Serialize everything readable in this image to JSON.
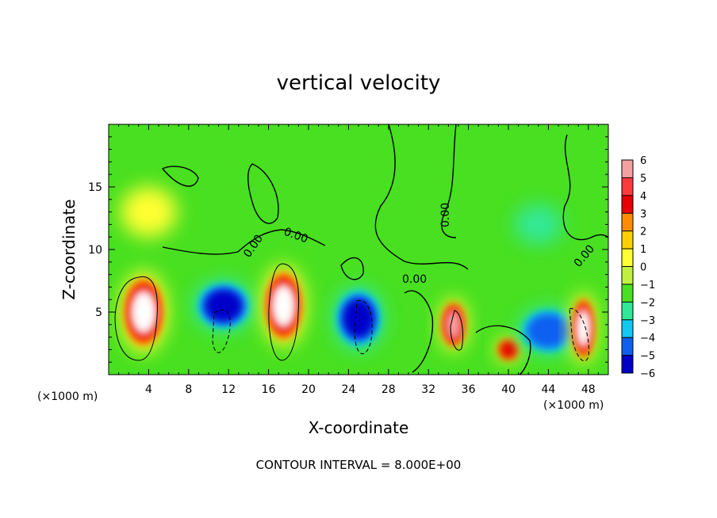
{
  "chart_data": {
    "type": "heatmap",
    "title": "vertical velocity",
    "xlabel": "X-coordinate",
    "ylabel": "Z-coordinate",
    "x_units_left": "(×1000 m)",
    "x_units_right": "(×1000 m)",
    "footer": "CONTOUR INTERVAL = 8.000E+00",
    "xlim": [
      0,
      50
    ],
    "ylim": [
      0,
      20
    ],
    "xticks": [
      "4",
      "8",
      "12",
      "16",
      "20",
      "24",
      "28",
      "32",
      "36",
      "40",
      "44",
      "48"
    ],
    "yticks": [
      "5",
      "10",
      "15"
    ],
    "colorbar": {
      "labels": [
        "6",
        "5",
        "4",
        "3",
        "2",
        "1",
        "0",
        "−1",
        "−2",
        "−3",
        "−4",
        "−5",
        "−6"
      ],
      "colors": [
        "#f4a0a0",
        "#ff3a3a",
        "#e80000",
        "#ff8c00",
        "#ffd000",
        "#ffff33",
        "#c0f040",
        "#48e020",
        "#30e898",
        "#10c8f0",
        "#1060f0",
        "#0000c8",
        "#780098"
      ]
    },
    "contour_labels": [
      "0.00",
      "0.00",
      "0.00",
      "0.00",
      "0.00"
    ],
    "cells": [
      {
        "x": 3.5,
        "z": 5,
        "w": 2.6,
        "h": 3.6,
        "v": 8
      },
      {
        "x": 11.5,
        "z": 5.5,
        "w": 3.8,
        "h": 2.6,
        "v": -7
      },
      {
        "x": 17.5,
        "z": 5.5,
        "w": 2.4,
        "h": 3.6,
        "v": 8
      },
      {
        "x": 25,
        "z": 4.5,
        "w": 3.2,
        "h": 3.2,
        "v": -7
      },
      {
        "x": 34.5,
        "z": 4,
        "w": 1.7,
        "h": 2.6,
        "v": 7
      },
      {
        "x": 40,
        "z": 2,
        "w": 1.5,
        "h": 1.2,
        "v": 4
      },
      {
        "x": 44,
        "z": 3.5,
        "w": 3.8,
        "h": 2.4,
        "v": -5
      },
      {
        "x": 47.5,
        "z": 3.7,
        "w": 1.4,
        "h": 3.2,
        "v": 8
      },
      {
        "x": 4,
        "z": 13,
        "w": 3.5,
        "h": 2.5,
        "v": 2
      },
      {
        "x": 43,
        "z": 12,
        "w": 3,
        "h": 2,
        "v": -2
      }
    ]
  }
}
